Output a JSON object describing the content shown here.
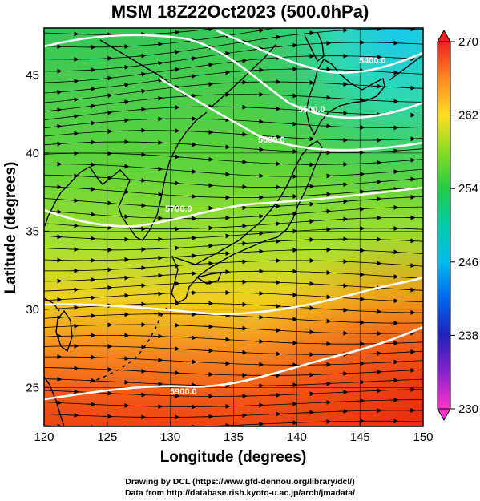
{
  "title": "MSM 18Z22Oct2023 (500.0hPa)",
  "map": {
    "xlabel": "Longitude (degrees)",
    "ylabel": "Latitude  (degrees)",
    "xlim": [
      120,
      150
    ],
    "ylim": [
      22.5,
      48
    ],
    "xticks": [
      "120",
      "125",
      "130",
      "135",
      "140",
      "145",
      "150"
    ],
    "yticks": [
      "25",
      "30",
      "35",
      "40",
      "45"
    ],
    "contours": [
      {
        "label": "5400.0",
        "lat_at_label": 45.8
      },
      {
        "label": "5500.0",
        "lat_at_label": 43.5
      },
      {
        "label": "5600.0",
        "lat_at_label": 41.2
      },
      {
        "label": "5700.0",
        "lat_at_label": 37.4
      },
      {
        "label": "5800.0",
        "lat_at_label": 31.3
      },
      {
        "label": "5900.0",
        "lat_at_label": 25.0
      }
    ]
  },
  "colorbar": {
    "min": 230,
    "max": 270,
    "ticks": [
      "270",
      "262",
      "254",
      "246",
      "238",
      "230"
    ]
  },
  "footer": {
    "line1": "Drawing by DCL (https://www.gfd-dennou.org/library/dcl/)",
    "line2": "Data from http://database.rish.kyoto-u.ac.jp/arch/jmadata/"
  }
}
